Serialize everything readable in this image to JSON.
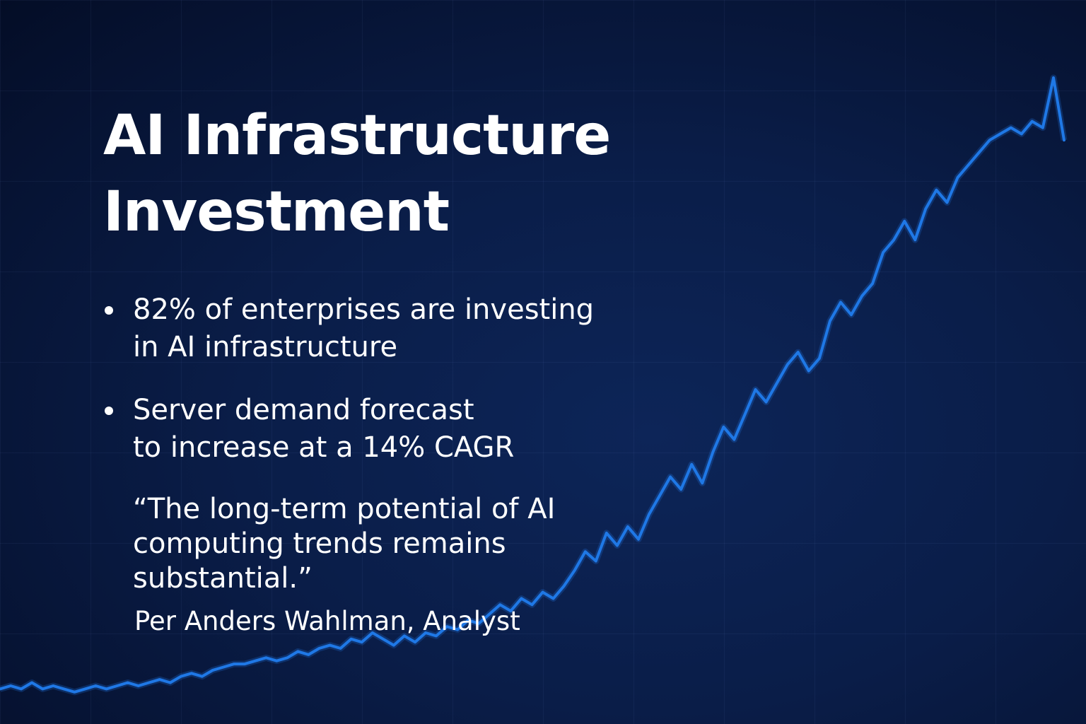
{
  "title_line1": "AI Infrastructure",
  "title_line2": "Investment",
  "bullets": [
    {
      "line1": "82% of enterprises are investing",
      "line2": "in AI infrastructure"
    },
    {
      "line1": "Server demand forecast",
      "line2": "to increase at a 14% CAGR"
    }
  ],
  "quote": {
    "line1": "“The long-term potential of AI",
    "line2": "computing trends remains",
    "line3": "substantial.”"
  },
  "attribution": "Per Anders Wahlman, Analyst",
  "colors": {
    "background": "#0a1d48",
    "line": "#1f78e6",
    "text": "#ffffff"
  },
  "chart_data": {
    "type": "line",
    "title": "",
    "xlabel": "",
    "ylabel": "",
    "grid": true,
    "legend": "none",
    "xlim": [
      0,
      100
    ],
    "ylim": [
      0,
      100
    ],
    "series": [
      {
        "values": [
          2,
          2.5,
          2,
          3,
          2,
          2.5,
          2,
          1.5,
          2,
          2.5,
          2,
          2.5,
          3,
          2.5,
          3,
          3.5,
          3,
          4,
          4.5,
          4,
          5,
          5.5,
          6,
          6,
          6.5,
          7,
          6.5,
          7,
          8,
          7.5,
          8.5,
          9,
          8.5,
          10,
          9.5,
          11,
          10,
          9,
          10.5,
          9.5,
          11,
          10.5,
          12,
          11.5,
          13,
          12.5,
          14,
          15.5,
          14.5,
          16.5,
          15.5,
          17.5,
          16.5,
          18.5,
          21,
          24,
          22.5,
          27,
          25,
          28,
          26,
          30,
          33,
          36,
          34,
          38,
          35,
          40,
          44,
          42,
          46,
          50,
          48,
          51,
          54,
          56,
          53,
          55,
          61,
          64,
          62,
          65,
          67,
          72,
          74,
          77,
          74,
          79,
          82,
          80,
          84,
          86,
          88,
          90,
          91,
          92,
          91,
          93,
          92,
          100,
          90
        ]
      }
    ]
  }
}
